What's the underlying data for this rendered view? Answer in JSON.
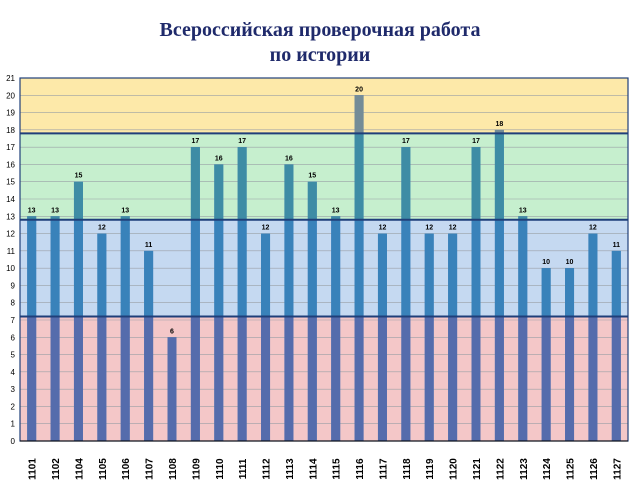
{
  "title": {
    "line1": "Всероссийская проверочная работа",
    "line2": "по истории"
  },
  "colors": {
    "band_low": "#f4c7c8",
    "band_mid": "#c5d9f1",
    "band_high": "#c6efce",
    "band_top": "#fde9a9",
    "bar": "#3a77c0",
    "bar_over_low": "#5a6aa8",
    "bar_over_mid": "#3a84b8",
    "bar_over_high": "#3f8fa0",
    "bar_over_top": "#7f8f8f",
    "band_line": "#1f3f7a"
  },
  "chart_data": {
    "type": "bar",
    "title": "",
    "xlabel": "",
    "ylabel": "",
    "ylim": [
      0,
      21
    ],
    "yticks": [
      0,
      1,
      2,
      3,
      4,
      5,
      6,
      7,
      8,
      9,
      10,
      11,
      12,
      13,
      14,
      15,
      16,
      17,
      18,
      19,
      20,
      21
    ],
    "grid": true,
    "bands": [
      {
        "from": 0,
        "to": 7.2
      },
      {
        "from": 7.2,
        "to": 12.8
      },
      {
        "from": 12.8,
        "to": 17.8
      },
      {
        "from": 17.8,
        "to": 21
      }
    ],
    "categories": [
      "1101",
      "1102",
      "1104",
      "1105",
      "1106",
      "1107",
      "1108",
      "1109",
      "1110",
      "1111",
      "1112",
      "1113",
      "1114",
      "1115",
      "1116",
      "1117",
      "1118",
      "1119",
      "1120",
      "1121",
      "1122",
      "1123",
      "1124",
      "1125",
      "1126",
      "1127"
    ],
    "values": [
      13,
      13,
      15,
      12,
      13,
      11,
      6,
      17,
      16,
      17,
      12,
      16,
      15,
      13,
      20,
      12,
      17,
      12,
      12,
      17,
      18,
      13,
      10,
      10,
      12,
      11
    ]
  }
}
